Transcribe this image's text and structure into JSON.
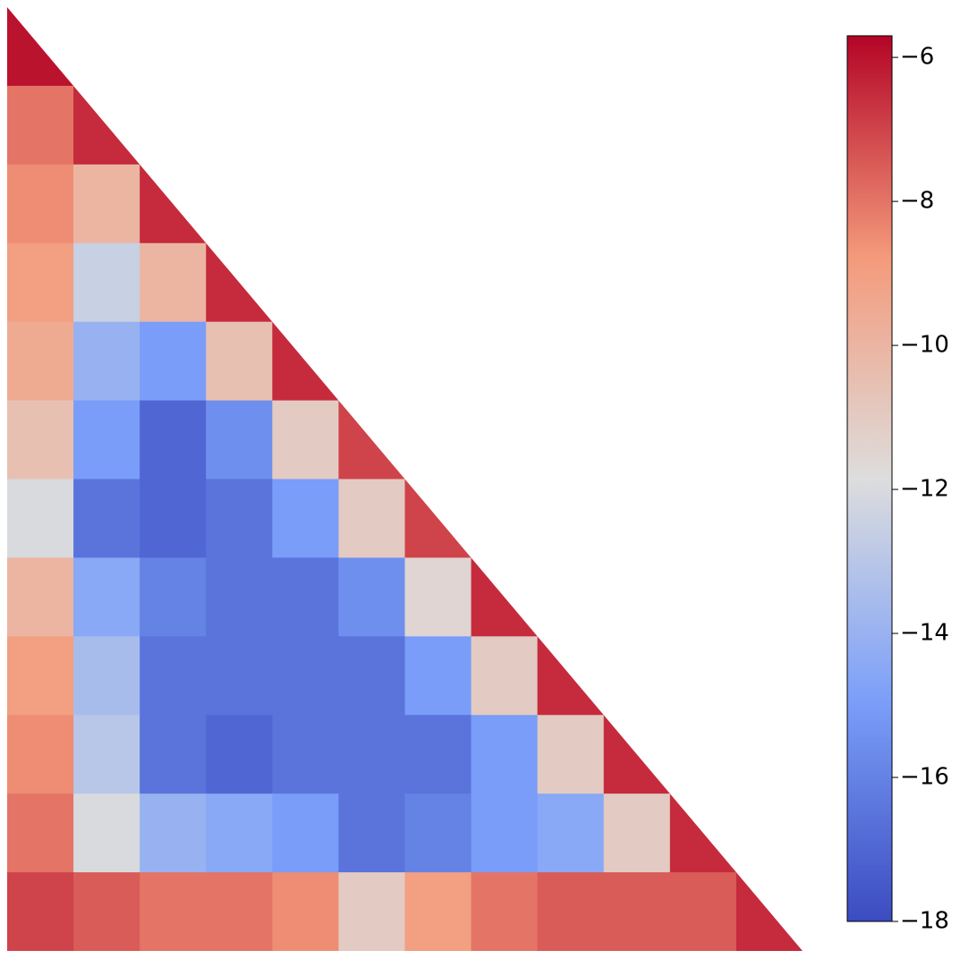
{
  "chart_data": {
    "type": "triangular-heatmap",
    "colormap": "coolwarm",
    "values": [
      [
        -6.0
      ],
      [
        -8,
        -6.5
      ],
      [
        -8.5,
        -10,
        -6.5
      ],
      [
        -9,
        -12.5,
        -10,
        -6.5
      ],
      [
        -9.5,
        -14,
        -15,
        -10.5,
        -6.5
      ],
      [
        -10.5,
        -15,
        -17,
        -15.5,
        -11,
        -7
      ],
      [
        -12,
        -16.5,
        -17,
        -16.5,
        -15,
        -11,
        -7
      ],
      [
        -10,
        -14.5,
        -16,
        -16.5,
        -16.5,
        -15.5,
        -11.5,
        -6.5
      ],
      [
        -9,
        -13.5,
        -16.5,
        -16.5,
        -16.5,
        -16.5,
        -15,
        -11,
        -6.5
      ],
      [
        -8.5,
        -13,
        -16.5,
        -17,
        -16.5,
        -16.5,
        -16.5,
        -15,
        -11,
        -6.5
      ],
      [
        -8,
        -12,
        -14,
        -14.5,
        -15,
        -16.5,
        -16,
        -15,
        -14.5,
        -11,
        -6.5
      ],
      [
        -7,
        -7.5,
        -8,
        -8,
        -8.5,
        -11,
        -9,
        -8,
        -7.5,
        -7.5,
        -7.5,
        -6.5
      ]
    ],
    "clim": [
      -18,
      -5.7
    ],
    "cticks": [
      {
        "value": -18,
        "label": "−18"
      },
      {
        "value": -16,
        "label": "−16"
      },
      {
        "value": -14,
        "label": "−14"
      },
      {
        "value": -12,
        "label": "−12"
      },
      {
        "value": -10,
        "label": "−10"
      },
      {
        "value": -8,
        "label": "−8"
      },
      {
        "value": -6,
        "label": "−6"
      }
    ]
  }
}
